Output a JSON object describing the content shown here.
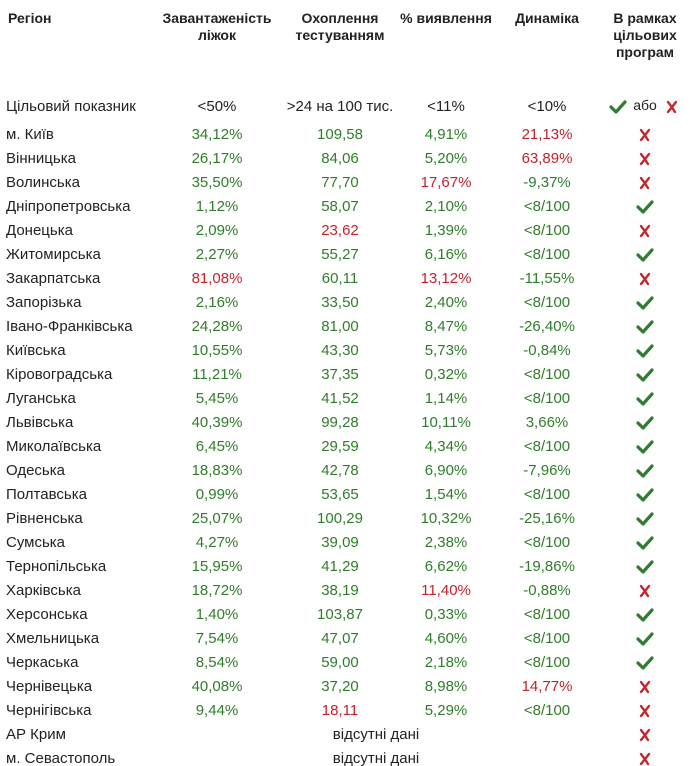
{
  "header": {
    "columns": [
      "Регіон",
      "Завантаженість ліжок",
      "Охоплення тестуванням",
      "% виявлення",
      "Динаміка",
      "В рамках цільових програм"
    ]
  },
  "target": {
    "label": "Цільовий показник",
    "cells": [
      "<50%",
      ">24 на 100 тис.",
      "<11%",
      "<10%"
    ],
    "legend_or": "або"
  },
  "table": {
    "rows": [
      {
        "region": "м. Київ",
        "cells": [
          "34,12%",
          "109,58",
          "4,91%",
          "21,13%"
        ],
        "red": [
          3
        ],
        "in_program": false
      },
      {
        "region": "Вінницька",
        "cells": [
          "26,17%",
          "84,06",
          "5,20%",
          "63,89%"
        ],
        "red": [
          3
        ],
        "in_program": false
      },
      {
        "region": "Волинська",
        "cells": [
          "35,50%",
          "77,70",
          "17,67%",
          "-9,37%"
        ],
        "red": [
          2
        ],
        "in_program": false
      },
      {
        "region": "Дніпропетровська",
        "cells": [
          "1,12%",
          "58,07",
          "2,10%",
          "<8/100"
        ],
        "red": [],
        "in_program": true
      },
      {
        "region": "Донецька",
        "cells": [
          "2,09%",
          "23,62",
          "1,39%",
          "<8/100"
        ],
        "red": [
          1
        ],
        "in_program": false
      },
      {
        "region": "Житомирська",
        "cells": [
          "2,27%",
          "55,27",
          "6,16%",
          "<8/100"
        ],
        "red": [],
        "in_program": true
      },
      {
        "region": "Закарпатська",
        "cells": [
          "81,08%",
          "60,11",
          "13,12%",
          "-11,55%"
        ],
        "red": [
          0,
          2
        ],
        "in_program": false
      },
      {
        "region": "Запорізька",
        "cells": [
          "2,16%",
          "33,50",
          "2,40%",
          "<8/100"
        ],
        "red": [],
        "in_program": true
      },
      {
        "region": "Івано-Франківська",
        "cells": [
          "24,28%",
          "81,00",
          "8,47%",
          "-26,40%"
        ],
        "red": [],
        "in_program": true
      },
      {
        "region": "Київська",
        "cells": [
          "10,55%",
          "43,30",
          "5,73%",
          "-0,84%"
        ],
        "red": [],
        "in_program": true
      },
      {
        "region": "Кіровоградська",
        "cells": [
          "11,21%",
          "37,35",
          "0,32%",
          "<8/100"
        ],
        "red": [],
        "in_program": true
      },
      {
        "region": "Луганська",
        "cells": [
          "5,45%",
          "41,52",
          "1,14%",
          "<8/100"
        ],
        "red": [],
        "in_program": true
      },
      {
        "region": "Львівська",
        "cells": [
          "40,39%",
          "99,28",
          "10,11%",
          "3,66%"
        ],
        "red": [],
        "in_program": true
      },
      {
        "region": "Миколаївська",
        "cells": [
          "6,45%",
          "29,59",
          "4,34%",
          "<8/100"
        ],
        "red": [],
        "in_program": true
      },
      {
        "region": "Одеська",
        "cells": [
          "18,83%",
          "42,78",
          "6,90%",
          "-7,96%"
        ],
        "red": [],
        "in_program": true
      },
      {
        "region": "Полтавська",
        "cells": [
          "0,99%",
          "53,65",
          "1,54%",
          "<8/100"
        ],
        "red": [],
        "in_program": true
      },
      {
        "region": "Рівненська",
        "cells": [
          "25,07%",
          "100,29",
          "10,32%",
          "-25,16%"
        ],
        "red": [],
        "in_program": true
      },
      {
        "region": "Сумська",
        "cells": [
          "4,27%",
          "39,09",
          "2,38%",
          "<8/100"
        ],
        "red": [],
        "in_program": true
      },
      {
        "region": "Тернопільська",
        "cells": [
          "15,95%",
          "41,29",
          "6,62%",
          "-19,86%"
        ],
        "red": [],
        "in_program": true
      },
      {
        "region": "Харківська",
        "cells": [
          "18,72%",
          "38,19",
          "11,40%",
          "-0,88%"
        ],
        "red": [
          2
        ],
        "in_program": false
      },
      {
        "region": "Херсонська",
        "cells": [
          "1,40%",
          "103,87",
          "0,33%",
          "<8/100"
        ],
        "red": [],
        "in_program": true
      },
      {
        "region": "Хмельницька",
        "cells": [
          "7,54%",
          "47,07",
          "4,60%",
          "<8/100"
        ],
        "red": [],
        "in_program": true
      },
      {
        "region": "Черкаська",
        "cells": [
          "8,54%",
          "59,00",
          "2,18%",
          "<8/100"
        ],
        "red": [],
        "in_program": true
      },
      {
        "region": "Чернівецька",
        "cells": [
          "40,08%",
          "37,20",
          "8,98%",
          "14,77%"
        ],
        "red": [
          3
        ],
        "in_program": false
      },
      {
        "region": "Чернігівська",
        "cells": [
          "9,44%",
          "18,11",
          "5,29%",
          "<8/100"
        ],
        "red": [
          1
        ],
        "in_program": false
      },
      {
        "region": "АР Крим",
        "note": "відсутні дані",
        "in_program": false
      },
      {
        "region": "м. Севастополь",
        "note": "відсутні дані",
        "in_program": false
      }
    ]
  }
}
